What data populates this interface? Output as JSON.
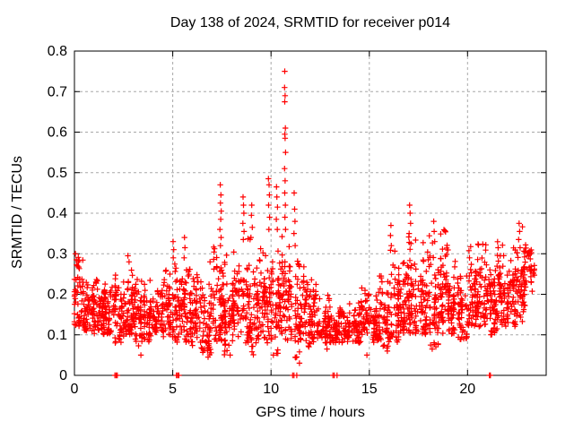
{
  "chart_data": {
    "type": "scatter",
    "title": "Day 138 of 2024, SRMTID for receiver p014",
    "xlabel": "GPS time / hours",
    "ylabel": "SRMTID / TECUs",
    "xlim": [
      0,
      24
    ],
    "ylim": [
      0,
      0.8
    ],
    "xticks": [
      0,
      5,
      10,
      15,
      20
    ],
    "yticks": [
      0,
      0.1,
      0.2,
      0.3,
      0.4,
      0.5,
      0.6,
      0.7,
      0.8
    ],
    "grid": true,
    "grid_style": "dashed",
    "grid_color": "#a8a8a8",
    "axis_color": "#000000",
    "legend": "none",
    "series_name": "SRMTID",
    "marker": {
      "shape": "plus",
      "color": "#ff0000",
      "size": 7
    },
    "render_seed": 20240138,
    "density_bins": [
      [
        0.0,
        58,
        0.12,
        0.3,
        0.18
      ],
      [
        0.5,
        55,
        0.11,
        0.26,
        0.16
      ],
      [
        1.0,
        55,
        0.1,
        0.24,
        0.155
      ],
      [
        1.5,
        55,
        0.1,
        0.25,
        0.15
      ],
      [
        2.0,
        55,
        0.08,
        0.27,
        0.16
      ],
      [
        2.5,
        55,
        0.1,
        0.3,
        0.17
      ],
      [
        3.0,
        52,
        0.07,
        0.29,
        0.15
      ],
      [
        3.5,
        50,
        0.06,
        0.25,
        0.14
      ],
      [
        4.0,
        50,
        0.1,
        0.24,
        0.15
      ],
      [
        4.5,
        52,
        0.09,
        0.26,
        0.16
      ],
      [
        5.0,
        55,
        0.08,
        0.3,
        0.165
      ],
      [
        5.5,
        55,
        0.08,
        0.31,
        0.16
      ],
      [
        6.0,
        50,
        0.06,
        0.26,
        0.14
      ],
      [
        6.5,
        50,
        0.05,
        0.28,
        0.135
      ],
      [
        7.0,
        55,
        0.08,
        0.32,
        0.17
      ],
      [
        7.5,
        55,
        0.05,
        0.3,
        0.155
      ],
      [
        8.0,
        55,
        0.08,
        0.33,
        0.17
      ],
      [
        8.5,
        55,
        0.08,
        0.35,
        0.175
      ],
      [
        9.0,
        52,
        0.05,
        0.33,
        0.16
      ],
      [
        9.5,
        55,
        0.08,
        0.35,
        0.175
      ],
      [
        10.0,
        55,
        0.05,
        0.33,
        0.17
      ],
      [
        10.5,
        55,
        0.08,
        0.35,
        0.19
      ],
      [
        11.0,
        50,
        0.04,
        0.3,
        0.14
      ],
      [
        11.5,
        50,
        0.07,
        0.3,
        0.145
      ],
      [
        12.0,
        50,
        0.08,
        0.26,
        0.14
      ],
      [
        12.5,
        46,
        0.08,
        0.21,
        0.125
      ],
      [
        13.0,
        45,
        0.08,
        0.18,
        0.115
      ],
      [
        13.5,
        45,
        0.08,
        0.17,
        0.115
      ],
      [
        14.0,
        46,
        0.08,
        0.19,
        0.12
      ],
      [
        14.5,
        48,
        0.06,
        0.22,
        0.13
      ],
      [
        15.0,
        50,
        0.08,
        0.24,
        0.14
      ],
      [
        15.5,
        50,
        0.06,
        0.27,
        0.145
      ],
      [
        16.0,
        55,
        0.08,
        0.31,
        0.16
      ],
      [
        16.5,
        55,
        0.1,
        0.35,
        0.17
      ],
      [
        17.0,
        55,
        0.1,
        0.36,
        0.18
      ],
      [
        17.5,
        58,
        0.1,
        0.33,
        0.18
      ],
      [
        18.0,
        55,
        0.07,
        0.36,
        0.17
      ],
      [
        18.5,
        58,
        0.1,
        0.36,
        0.21
      ],
      [
        19.0,
        55,
        0.1,
        0.32,
        0.18
      ],
      [
        19.5,
        55,
        0.08,
        0.3,
        0.17
      ],
      [
        20.0,
        58,
        0.12,
        0.33,
        0.2
      ],
      [
        20.5,
        58,
        0.12,
        0.33,
        0.2
      ],
      [
        21.0,
        55,
        0.1,
        0.3,
        0.17
      ],
      [
        21.5,
        55,
        0.12,
        0.33,
        0.19
      ],
      [
        22.0,
        58,
        0.12,
        0.35,
        0.21
      ],
      [
        22.5,
        58,
        0.13,
        0.375,
        0.23
      ],
      [
        23.0,
        25,
        0.18,
        0.31,
        0.25,
        0.4
      ]
    ],
    "highlight_points": [
      [
        0.05,
        0.3
      ],
      [
        0.1,
        0.285
      ],
      [
        0.15,
        0.27
      ],
      [
        2.72,
        0.295
      ],
      [
        2.78,
        0.28
      ],
      [
        5.02,
        0.33
      ],
      [
        5.05,
        0.31
      ],
      [
        5.03,
        0.29
      ],
      [
        5.6,
        0.34
      ],
      [
        5.62,
        0.315
      ],
      [
        5.58,
        0.29
      ],
      [
        6.9,
        0.28
      ],
      [
        7.42,
        0.47
      ],
      [
        7.45,
        0.445
      ],
      [
        7.43,
        0.425
      ],
      [
        7.47,
        0.405
      ],
      [
        7.44,
        0.385
      ],
      [
        7.4,
        0.36
      ],
      [
        7.46,
        0.34
      ],
      [
        7.43,
        0.32
      ],
      [
        8.58,
        0.44
      ],
      [
        8.6,
        0.42
      ],
      [
        8.62,
        0.4
      ],
      [
        8.57,
        0.375
      ],
      [
        8.63,
        0.355
      ],
      [
        8.59,
        0.335
      ],
      [
        9.02,
        0.42
      ],
      [
        9.0,
        0.395
      ],
      [
        9.05,
        0.365
      ],
      [
        8.98,
        0.34
      ],
      [
        9.87,
        0.485
      ],
      [
        9.9,
        0.47
      ],
      [
        9.92,
        0.445
      ],
      [
        9.88,
        0.42
      ],
      [
        9.93,
        0.39
      ],
      [
        9.89,
        0.36
      ],
      [
        10.28,
        0.465
      ],
      [
        10.3,
        0.44
      ],
      [
        10.33,
        0.415
      ],
      [
        10.27,
        0.385
      ],
      [
        10.32,
        0.36
      ],
      [
        10.7,
        0.75
      ],
      [
        10.69,
        0.71
      ],
      [
        10.72,
        0.69
      ],
      [
        10.7,
        0.675
      ],
      [
        10.73,
        0.61
      ],
      [
        10.7,
        0.595
      ],
      [
        10.72,
        0.585
      ],
      [
        10.74,
        0.55
      ],
      [
        10.69,
        0.51
      ],
      [
        10.72,
        0.48
      ],
      [
        10.7,
        0.45
      ],
      [
        10.73,
        0.42
      ],
      [
        10.71,
        0.39
      ],
      [
        10.74,
        0.36
      ],
      [
        11.18,
        0.45
      ],
      [
        11.2,
        0.41
      ],
      [
        11.22,
        0.38
      ],
      [
        11.17,
        0.35
      ],
      [
        11.23,
        0.32
      ],
      [
        16.1,
        0.37
      ],
      [
        16.08,
        0.345
      ],
      [
        16.12,
        0.32
      ],
      [
        17.05,
        0.42
      ],
      [
        17.08,
        0.4
      ],
      [
        17.1,
        0.375
      ],
      [
        17.03,
        0.35
      ],
      [
        17.12,
        0.325
      ],
      [
        18.28,
        0.38
      ],
      [
        18.3,
        0.355
      ],
      [
        18.33,
        0.33
      ],
      [
        22.62,
        0.375
      ],
      [
        22.65,
        0.355
      ],
      [
        22.6,
        0.335
      ],
      [
        22.67,
        0.315
      ],
      [
        3.38,
        0.05
      ],
      [
        6.8,
        0.045
      ],
      [
        7.92,
        0.05
      ],
      [
        10.12,
        0.05
      ],
      [
        11.45,
        0.03
      ],
      [
        14.88,
        0.05
      ],
      [
        15.92,
        0.06
      ],
      [
        18.2,
        0.065
      ],
      [
        12.85,
        0.065
      ]
    ],
    "zero_points": [
      2.06,
      2.12,
      2.18,
      5.19,
      5.25,
      5.31,
      11.1,
      11.17,
      11.31,
      13.15,
      13.22,
      13.36,
      21.11,
      21.16
    ]
  }
}
